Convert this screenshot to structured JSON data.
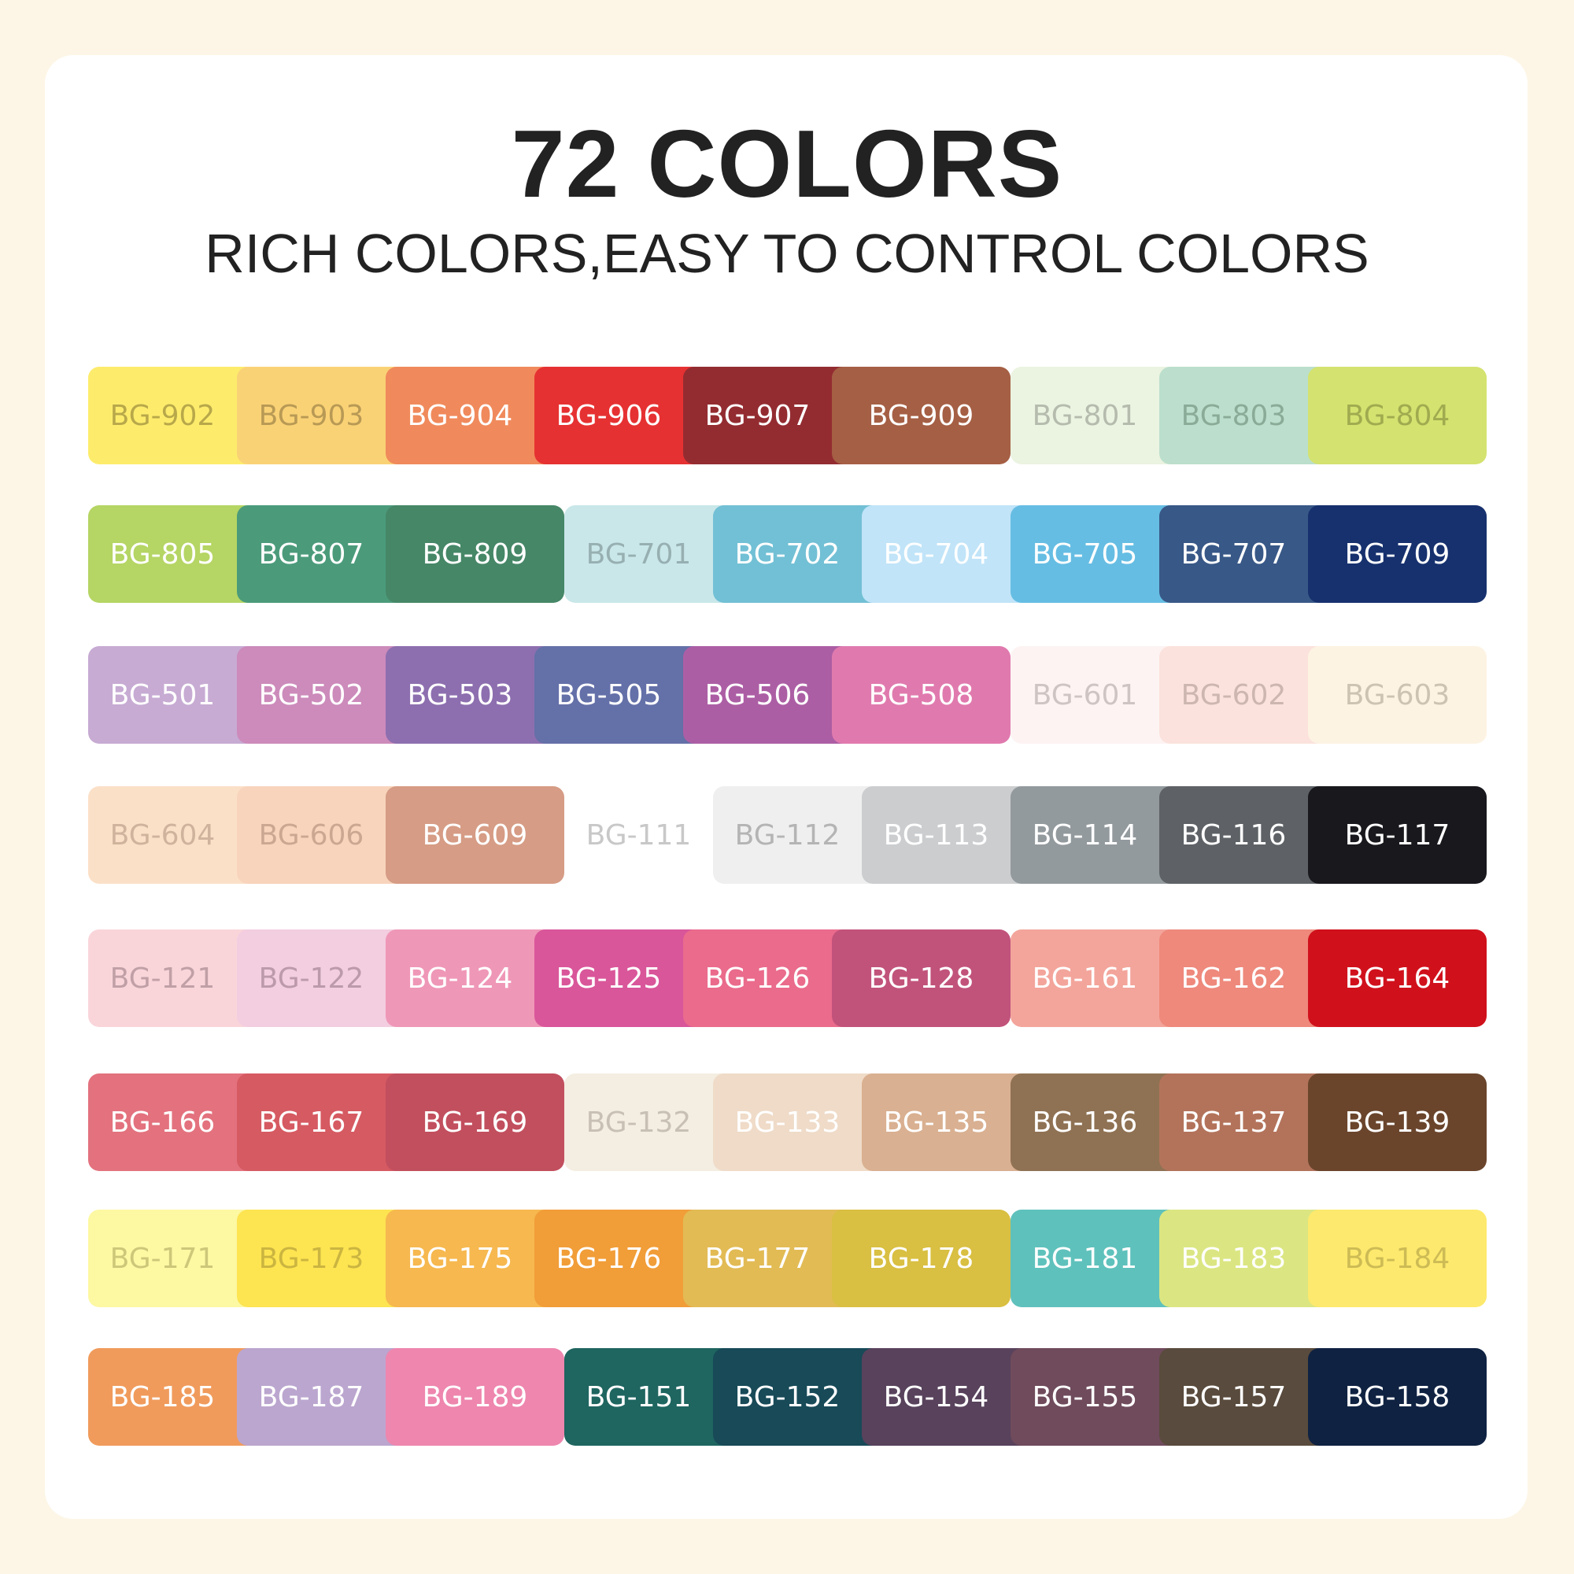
{
  "title": "72 COLORS",
  "subtitle": "RICH COLORS,EASY TO CONTROL COLORS",
  "rows": [
    [
      [
        {
          "code": "BG-902",
          "color": "#fdec6c",
          "text": "#b8a84a"
        },
        {
          "code": "BG-903",
          "color": "#fad276",
          "text": "#b89a55"
        },
        {
          "code": "BG-904",
          "color": "#f08a5c",
          "text": "#ffffff"
        },
        {
          "code": "BG-906",
          "color": "#e63132",
          "text": "#ffffff"
        },
        {
          "code": "BG-907",
          "color": "#932c31",
          "text": "#ffffff"
        },
        {
          "code": "BG-909",
          "color": "#a55f44",
          "text": "#ffffff"
        }
      ],
      [
        {
          "code": "BG-801",
          "color": "#ebf3e1",
          "text": "#b5bcae"
        },
        {
          "code": "BG-803",
          "color": "#bbdfcc",
          "text": "#8aab98"
        },
        {
          "code": "BG-804",
          "color": "#d4e26f",
          "text": "#a0ab50"
        }
      ]
    ],
    [
      [
        {
          "code": "BG-805",
          "color": "#b5d564",
          "text": "#ffffff"
        },
        {
          "code": "BG-807",
          "color": "#4b9b7b",
          "text": "#ffffff"
        },
        {
          "code": "BG-809",
          "color": "#468767",
          "text": "#ffffff"
        }
      ],
      [
        {
          "code": "BG-701",
          "color": "#c9e7e9",
          "text": "#97afb1"
        },
        {
          "code": "BG-702",
          "color": "#72c0d5",
          "text": "#ffffff"
        },
        {
          "code": "BG-704",
          "color": "#c1e4f8",
          "text": "#ffffff"
        },
        {
          "code": "BG-705",
          "color": "#66bde3",
          "text": "#ffffff"
        },
        {
          "code": "BG-707",
          "color": "#385887",
          "text": "#ffffff"
        },
        {
          "code": "BG-709",
          "color": "#17316e",
          "text": "#ffffff"
        }
      ]
    ],
    [
      [
        {
          "code": "BG-501",
          "color": "#c7abd3",
          "text": "#ffffff"
        },
        {
          "code": "BG-502",
          "color": "#cc8bbb",
          "text": "#ffffff"
        },
        {
          "code": "BG-503",
          "color": "#8d6faf",
          "text": "#ffffff"
        },
        {
          "code": "BG-505",
          "color": "#6470a8",
          "text": "#ffffff"
        },
        {
          "code": "BG-506",
          "color": "#ac5ea4",
          "text": "#ffffff"
        },
        {
          "code": "BG-508",
          "color": "#e07aae",
          "text": "#ffffff"
        }
      ],
      [
        {
          "code": "BG-601",
          "color": "#fdf3f3",
          "text": "#cfc4c4"
        },
        {
          "code": "BG-602",
          "color": "#fbe2dc",
          "text": "#cdb6b0"
        },
        {
          "code": "BG-603",
          "color": "#fdf3e3",
          "text": "#cdc3b3"
        }
      ]
    ],
    [
      [
        {
          "code": "BG-604",
          "color": "#fbe0c8",
          "text": "#cfb39c"
        },
        {
          "code": "BG-606",
          "color": "#f8d4bc",
          "text": "#cba792"
        },
        {
          "code": "BG-609",
          "color": "#d69c85",
          "text": "#ffffff"
        }
      ],
      [
        {
          "code": "BG-111",
          "color": "#ffffff",
          "text": "#c8c8c8"
        },
        {
          "code": "BG-112",
          "color": "#efefef",
          "text": "#b4b4b4"
        },
        {
          "code": "BG-113",
          "color": "#cbcdcf",
          "text": "#ffffff"
        },
        {
          "code": "BG-114",
          "color": "#939a9e",
          "text": "#ffffff"
        },
        {
          "code": "BG-116",
          "color": "#5e6266",
          "text": "#ffffff"
        },
        {
          "code": "BG-117",
          "color": "#18181d",
          "text": "#ffffff"
        }
      ]
    ],
    [
      [
        {
          "code": "BG-121",
          "color": "#f9d5da",
          "text": "#c0a0a6"
        },
        {
          "code": "BG-122",
          "color": "#f3cde0",
          "text": "#bc9aab"
        },
        {
          "code": "BG-124",
          "color": "#ef97b7",
          "text": "#ffffff"
        },
        {
          "code": "BG-125",
          "color": "#d9569a",
          "text": "#ffffff"
        },
        {
          "code": "BG-126",
          "color": "#ea6b8c",
          "text": "#ffffff"
        },
        {
          "code": "BG-128",
          "color": "#c1537b",
          "text": "#ffffff"
        }
      ],
      [
        {
          "code": "BG-161",
          "color": "#f3a59b",
          "text": "#ffffff"
        },
        {
          "code": "BG-162",
          "color": "#ee897c",
          "text": "#ffffff"
        },
        {
          "code": "BG-164",
          "color": "#d0111c",
          "text": "#ffffff"
        }
      ]
    ],
    [
      [
        {
          "code": "BG-166",
          "color": "#e3727e",
          "text": "#ffffff"
        },
        {
          "code": "BG-167",
          "color": "#d65a62",
          "text": "#ffffff"
        },
        {
          "code": "BG-169",
          "color": "#c24f5e",
          "text": "#ffffff"
        }
      ],
      [
        {
          "code": "BG-132",
          "color": "#f4ede1",
          "text": "#c8c0b4"
        },
        {
          "code": "BG-133",
          "color": "#efdbc8",
          "text": "#ffffff"
        },
        {
          "code": "BG-135",
          "color": "#d9b091",
          "text": "#ffffff"
        },
        {
          "code": "BG-136",
          "color": "#8f7253",
          "text": "#ffffff"
        },
        {
          "code": "BG-137",
          "color": "#b3735b",
          "text": "#ffffff"
        },
        {
          "code": "BG-139",
          "color": "#6a452c",
          "text": "#ffffff"
        }
      ]
    ],
    [
      [
        {
          "code": "BG-171",
          "color": "#fdf8a2",
          "text": "#cdc77a"
        },
        {
          "code": "BG-173",
          "color": "#fde451",
          "text": "#cbb540"
        },
        {
          "code": "BG-175",
          "color": "#f6b84f",
          "text": "#ffffff"
        },
        {
          "code": "BG-176",
          "color": "#f19d38",
          "text": "#ffffff"
        },
        {
          "code": "BG-177",
          "color": "#e2bb55",
          "text": "#ffffff"
        },
        {
          "code": "BG-178",
          "color": "#d9bf42",
          "text": "#ffffff"
        }
      ],
      [
        {
          "code": "BG-181",
          "color": "#5fc1bc",
          "text": "#ffffff"
        },
        {
          "code": "BG-183",
          "color": "#dbe682",
          "text": "#ffffff"
        },
        {
          "code": "BG-184",
          "color": "#fde96d",
          "text": "#cdbb55"
        }
      ]
    ],
    [
      [
        {
          "code": "BG-185",
          "color": "#f09b5c",
          "text": "#ffffff"
        },
        {
          "code": "BG-187",
          "color": "#bba6cf",
          "text": "#ffffff"
        },
        {
          "code": "BG-189",
          "color": "#ee86ae",
          "text": "#ffffff"
        }
      ],
      [
        {
          "code": "BG-151",
          "color": "#1f6560",
          "text": "#ffffff"
        },
        {
          "code": "BG-152",
          "color": "#184a58",
          "text": "#ffffff"
        },
        {
          "code": "BG-154",
          "color": "#58425c",
          "text": "#ffffff"
        },
        {
          "code": "BG-155",
          "color": "#6f4b5c",
          "text": "#ffffff"
        },
        {
          "code": "BG-157",
          "color": "#594b3d",
          "text": "#ffffff"
        },
        {
          "code": "BG-158",
          "color": "#0f2242",
          "text": "#ffffff"
        }
      ]
    ]
  ]
}
